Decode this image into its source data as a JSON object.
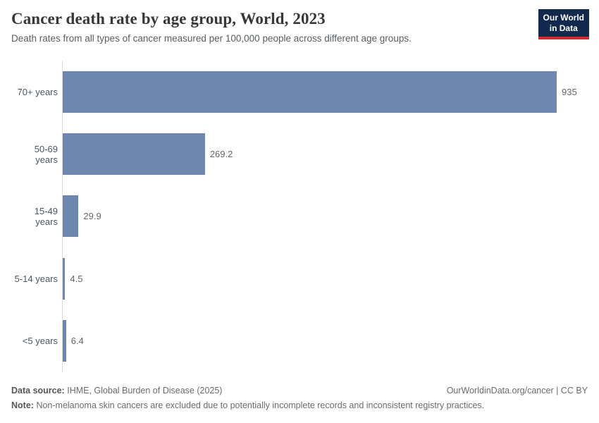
{
  "header": {
    "title": "Cancer death rate by age group, World, 2023",
    "subtitle": "Death rates from all types of cancer measured per 100,000 people across different age groups.",
    "logo_line1": "Our World",
    "logo_line2": "in Data"
  },
  "chart_data": {
    "type": "bar",
    "orientation": "horizontal",
    "title": "Cancer death rate by age group, World, 2023",
    "subtitle": "Death rates from all types of cancer measured per 100,000 people across different age groups.",
    "categories": [
      "70+ years",
      "50-69 years",
      "15-49 years",
      "5-14 years",
      "<5 years"
    ],
    "values": [
      935,
      269.2,
      29.9,
      4.5,
      6.4
    ],
    "value_labels": [
      "935",
      "269.2",
      "29.9",
      "4.5",
      "6.4"
    ],
    "xlabel": "",
    "ylabel": "",
    "xlim": [
      0,
      935
    ],
    "grid": false,
    "legend": "none",
    "bar_color": "#6e87af",
    "axis_color": "#dcdcdc"
  },
  "footer": {
    "source_label": "Data source:",
    "source_text": "IHME, Global Burden of Disease (2025)",
    "url_text": "OurWorldinData.org/cancer | CC BY",
    "note_label": "Note:",
    "note_text": "Non-melanoma skin cancers are excluded due to potentially incomplete records and inconsistent registry practices."
  },
  "colors": {
    "bar": "#6e87af",
    "logo_navy": "#12294e",
    "logo_red": "#cb2d30",
    "axis_line": "#dcdcdc",
    "title_text": "#383838",
    "body_text": "#6b6b6b"
  }
}
